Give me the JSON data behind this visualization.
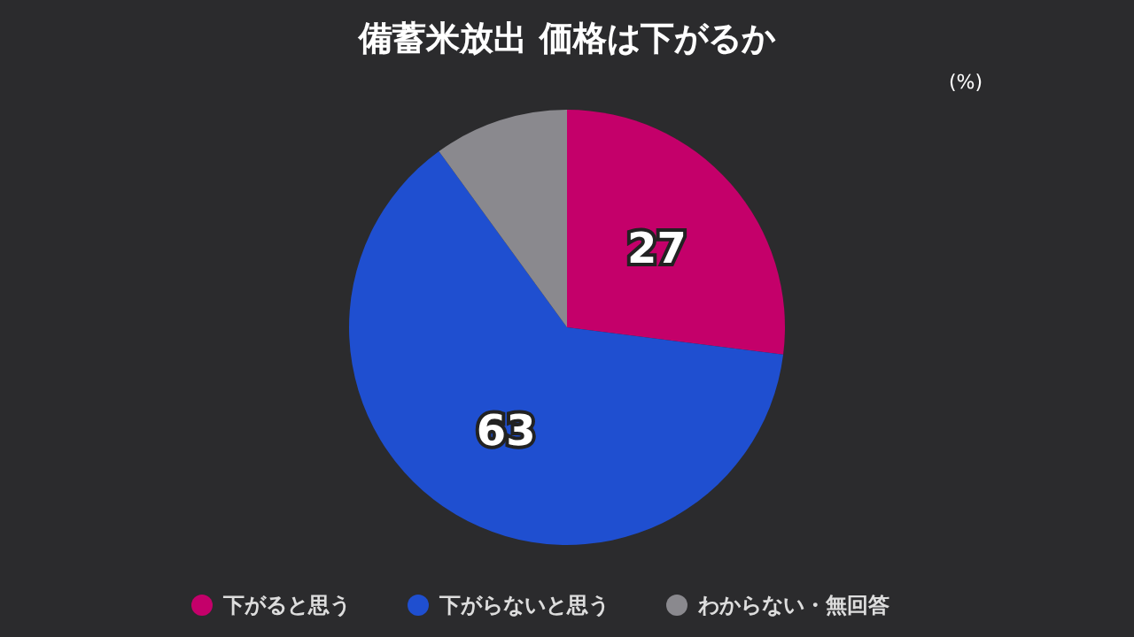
{
  "chart_data": {
    "type": "pie",
    "title": "備蓄米放出 価格は下がるか",
    "subtitle": "(%)",
    "categories": [
      "下がると思う",
      "下がらないと思う",
      "わからない・無回答"
    ],
    "values": [
      27,
      63,
      10
    ],
    "colors": [
      "#c4006a",
      "#1f4fd0",
      "#8a898e"
    ],
    "value_labels": [
      "27",
      "63",
      null
    ],
    "legend": "bottom"
  }
}
